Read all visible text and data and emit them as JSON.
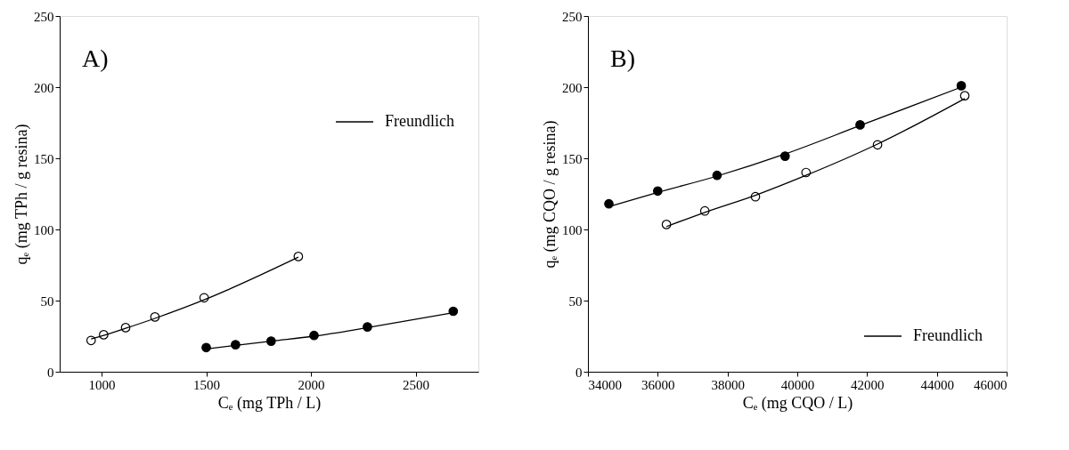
{
  "chart_data": [
    {
      "type": "scatter",
      "annotations": [
        "A)"
      ],
      "xlabel": "Cₑ (mg TPh / L)",
      "ylabel": "qₑ (mg TPh / g resina)",
      "xlim": [
        800,
        2800
      ],
      "xticks": [
        1000,
        1500,
        2000,
        2500
      ],
      "ylim": [
        0,
        250
      ],
      "yticks": [
        0,
        50,
        100,
        150,
        200,
        250
      ],
      "grid": false,
      "legend": "top right",
      "series": [
        {
          "marker": "circle",
          "color": "#000000",
          "x": [
            1500,
            1640,
            1810,
            2015,
            2270,
            2680
          ],
          "values": [
            17,
            19,
            21.5,
            25.5,
            31.5,
            42.5
          ]
        },
        {
          "marker": "circle",
          "color": "#ffffff",
          "x": [
            950,
            1010,
            1115,
            1255,
            1490,
            1940
          ],
          "values": [
            22,
            26,
            31,
            38.5,
            52,
            81
          ]
        },
        {
          "type": "line",
          "marker": "none",
          "name": "Freundlich",
          "color": "#000000",
          "x": [
            1500,
            1640,
            1810,
            2015,
            2270,
            2680
          ],
          "values": [
            16,
            18.5,
            21.5,
            25,
            31,
            41.5
          ]
        },
        {
          "type": "line",
          "marker": "none",
          "color": "#000000",
          "x": [
            950,
            1010,
            1115,
            1255,
            1490,
            1940
          ],
          "values": [
            23,
            25.5,
            30.5,
            37.5,
            50.5,
            80.5
          ]
        }
      ]
    },
    {
      "type": "scatter",
      "annotations": [
        "B)"
      ],
      "xlabel": "Cₑ (mg CQO / L)",
      "ylabel": "qₑ (mg CQO / g resina)",
      "xlim": [
        34000,
        46000
      ],
      "xticks": [
        34000,
        36000,
        38000,
        40000,
        42000,
        44000,
        46000
      ],
      "ylim": [
        0,
        250
      ],
      "yticks": [
        0,
        50,
        100,
        150,
        200,
        250
      ],
      "grid": false,
      "legend": "bottom right",
      "series": [
        {
          "marker": "circle",
          "color": "#000000",
          "x": [
            34600,
            36000,
            37700,
            39650,
            41800,
            44700
          ],
          "values": [
            118,
            127,
            138,
            151.5,
            173.5,
            201
          ]
        },
        {
          "marker": "circle",
          "color": "#ffffff",
          "x": [
            36250,
            37350,
            38800,
            40250,
            42300,
            44800
          ],
          "values": [
            103.5,
            113,
            123,
            140,
            159.5,
            194
          ]
        },
        {
          "type": "line",
          "marker": "none",
          "name": "Freundlich",
          "color": "#000000",
          "x": [
            34600,
            36000,
            37700,
            39650,
            41800,
            44700
          ],
          "values": [
            116,
            126,
            137.5,
            153,
            173,
            200
          ]
        },
        {
          "type": "line",
          "marker": "none",
          "color": "#000000",
          "x": [
            36250,
            37350,
            38800,
            40250,
            42300,
            44800
          ],
          "values": [
            102,
            112,
            124,
            138,
            160,
            192
          ]
        }
      ]
    }
  ]
}
